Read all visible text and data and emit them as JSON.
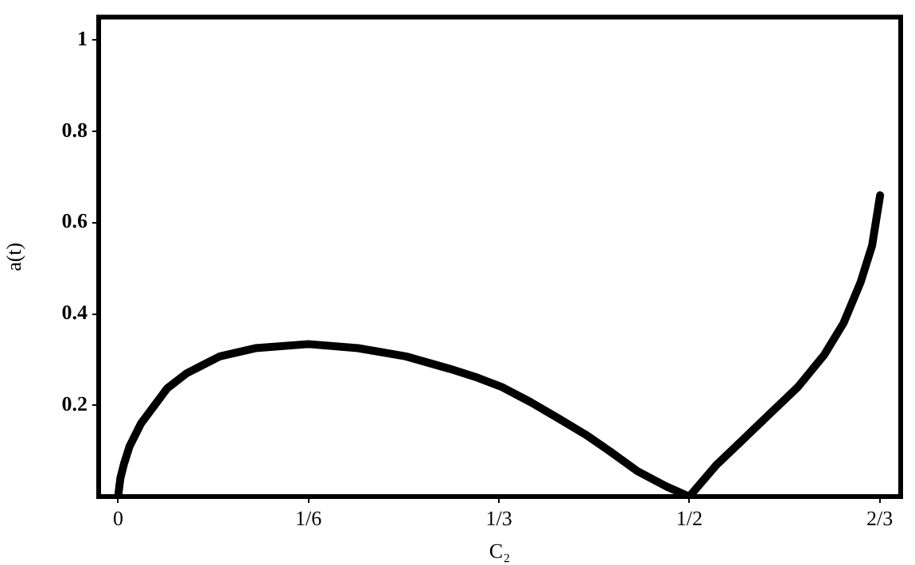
{
  "chart_data": {
    "type": "line",
    "xlabel": "C₂",
    "ylabel": "a(t)",
    "xlim": [
      -0.017,
      0.685
    ],
    "ylim": [
      0,
      1.05
    ],
    "xticks": [
      {
        "value": 0,
        "label": "0"
      },
      {
        "value": 0.16667,
        "label": "1/6"
      },
      {
        "value": 0.33333,
        "label": "1/3"
      },
      {
        "value": 0.5,
        "label": "1/2"
      },
      {
        "value": 0.66667,
        "label": "2/3"
      }
    ],
    "yticks": [
      0.2,
      0.4,
      0.6,
      0.8,
      1
    ],
    "marker": "none",
    "series": [
      {
        "color": "#000000",
        "x": [
          0,
          0.002,
          0.005,
          0.01,
          0.02,
          0.043,
          0.06,
          0.089,
          0.12,
          0.1667,
          0.21,
          0.252,
          0.29,
          0.315,
          0.336,
          0.361,
          0.385,
          0.409,
          0.43,
          0.455,
          0.48,
          0.5,
          0.524,
          0.545,
          0.57,
          0.595,
          0.618,
          0.635,
          0.65,
          0.66,
          0.667
        ],
        "values": [
          0,
          0.04,
          0.07,
          0.11,
          0.16,
          0.237,
          0.27,
          0.307,
          0.325,
          0.334,
          0.325,
          0.307,
          0.28,
          0.26,
          0.24,
          0.207,
          0.172,
          0.136,
          0.1,
          0.055,
          0.022,
          0,
          0.07,
          0.12,
          0.18,
          0.24,
          0.31,
          0.38,
          0.47,
          0.55,
          0.66
        ]
      }
    ]
  }
}
